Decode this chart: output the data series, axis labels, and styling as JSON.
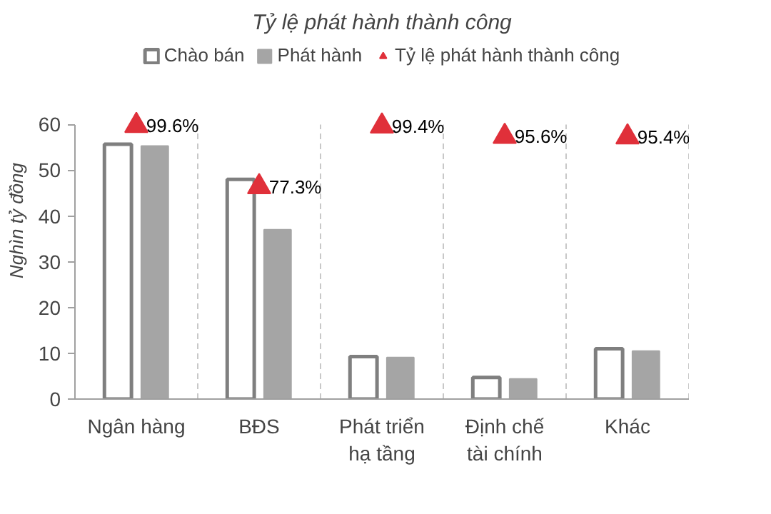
{
  "chart_data": {
    "type": "bar",
    "title": "Tỷ lệ phát hành thành công",
    "ylabel": "Nghìn tỷ đồng",
    "categories": [
      "Ngân hàng",
      "BĐS",
      "Phát triển\nhạ tầng",
      "Định chế\ntài chính",
      "Khác"
    ],
    "series": [
      {
        "name": "Chào bán",
        "color": "#7f7f7f",
        "values": [
          55.7,
          48,
          9.3,
          4.7,
          11
        ]
      },
      {
        "name": "Phát hành",
        "color": "#a5a5a5",
        "values": [
          55.3,
          37,
          9.1,
          4.4,
          10.5
        ]
      },
      {
        "name": "Tỷ lệ phát hành thành công",
        "type": "scatter",
        "axis": "y2",
        "marker": "triangle",
        "color": "#e0303a",
        "values": [
          99.6,
          77.3,
          99.4,
          95.6,
          95.4
        ],
        "value_labels": [
          "99.6%",
          "77.3%",
          "99.4%",
          "95.6%",
          "95.4%"
        ]
      }
    ],
    "ylim": [
      0,
      60
    ],
    "yticks": [
      0,
      10,
      20,
      30,
      40,
      50,
      60
    ],
    "y2lim": [
      0,
      100
    ],
    "grid": "x",
    "legend": "top"
  }
}
